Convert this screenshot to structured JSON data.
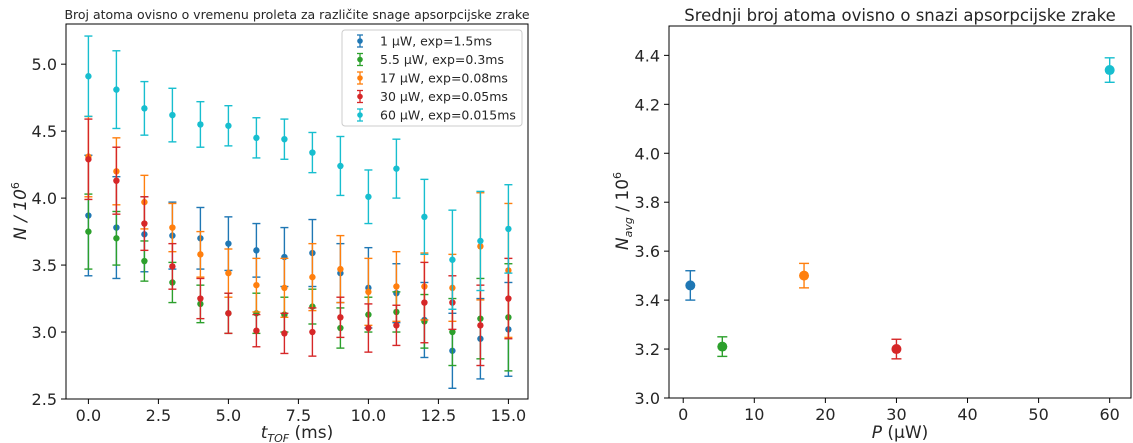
{
  "chart_data": [
    {
      "type": "scatter",
      "title": "Broj atoma ovisno o vremenu proleta za različite snage apsorpcijske zrake",
      "xlabel_main": "t",
      "xlabel_sub": "TOF",
      "xlabel_unit": " (ms)",
      "ylabel_main": "N / 10",
      "ylabel_sup": "6",
      "xlim": [
        -0.8,
        15.7
      ],
      "ylim": [
        2.5,
        5.3
      ],
      "xticks": [
        0.0,
        2.5,
        5.0,
        7.5,
        10.0,
        12.5,
        15.0
      ],
      "xtick_labels": [
        "0.0",
        "2.5",
        "5.0",
        "7.5",
        "10.0",
        "12.5",
        "15.0"
      ],
      "yticks": [
        2.5,
        3.0,
        3.5,
        4.0,
        4.5,
        5.0
      ],
      "ytick_labels": [
        "2.5",
        "3.0",
        "3.5",
        "4.0",
        "4.5",
        "5.0"
      ],
      "legend_position": "top-right",
      "x": [
        0,
        1,
        2,
        3,
        4,
        5,
        6,
        7,
        8,
        9,
        10,
        11,
        12,
        13,
        14,
        15
      ],
      "series": [
        {
          "name": "1 μW, exp=1.5ms",
          "color": "#1f77b4",
          "values": [
            3.87,
            3.78,
            3.73,
            3.72,
            3.7,
            3.66,
            3.61,
            3.56,
            3.59,
            3.44,
            3.33,
            3.29,
            3.09,
            2.86,
            2.95,
            3.02
          ],
          "errors": [
            0.45,
            0.38,
            0.28,
            0.25,
            0.23,
            0.2,
            0.2,
            0.22,
            0.25,
            0.22,
            0.3,
            0.22,
            0.28,
            0.28,
            0.3,
            0.35
          ]
        },
        {
          "name": "5.5 μW, exp=0.3ms",
          "color": "#2ca02c",
          "values": [
            3.75,
            3.7,
            3.53,
            3.37,
            3.21,
            3.14,
            3.14,
            3.13,
            3.19,
            3.03,
            3.13,
            3.15,
            3.08,
            3.0,
            3.1,
            3.11
          ],
          "errors": [
            0.28,
            0.2,
            0.15,
            0.15,
            0.14,
            0.15,
            0.15,
            0.13,
            0.13,
            0.15,
            0.13,
            0.15,
            0.2,
            0.25,
            0.3,
            0.4
          ]
        },
        {
          "name": "17 μW, exp=0.08ms",
          "color": "#ff7f0e",
          "values": [
            4.31,
            4.2,
            3.97,
            3.78,
            3.58,
            3.44,
            3.35,
            3.33,
            3.41,
            3.47,
            3.3,
            3.34,
            3.34,
            3.33,
            3.64,
            3.46
          ],
          "errors": [
            0.3,
            0.25,
            0.2,
            0.18,
            0.17,
            0.18,
            0.2,
            0.22,
            0.25,
            0.25,
            0.25,
            0.26,
            0.25,
            0.25,
            0.4,
            0.5
          ]
        },
        {
          "name": "30 μW, exp=0.05ms",
          "color": "#d62728",
          "values": [
            4.29,
            4.13,
            3.81,
            3.49,
            3.25,
            3.14,
            3.01,
            2.99,
            3.0,
            3.11,
            3.03,
            3.05,
            3.22,
            3.22,
            3.05,
            3.25
          ],
          "errors": [
            0.3,
            0.25,
            0.2,
            0.17,
            0.15,
            0.15,
            0.12,
            0.15,
            0.18,
            0.15,
            0.18,
            0.15,
            0.3,
            0.2,
            0.3,
            0.3
          ]
        },
        {
          "name": "60 μW, exp=0.015ms",
          "color": "#17becf",
          "values": [
            4.91,
            4.81,
            4.67,
            4.62,
            4.55,
            4.54,
            4.45,
            4.44,
            4.34,
            4.24,
            4.01,
            4.22,
            3.86,
            3.54,
            3.68,
            3.77
          ],
          "errors": [
            0.3,
            0.29,
            0.2,
            0.2,
            0.17,
            0.15,
            0.15,
            0.15,
            0.15,
            0.22,
            0.2,
            0.22,
            0.28,
            0.37,
            0.37,
            0.33
          ]
        }
      ]
    },
    {
      "type": "scatter",
      "title": "Srednji broj atoma ovisno o snazi apsorpcijske zrake",
      "xlabel_main": "P",
      "xlabel_unit": " (μW)",
      "ylabel_main": "N",
      "ylabel_sub": "avg",
      "ylabel_rest": " / 10",
      "ylabel_sup": "6",
      "xlim": [
        -2,
        63
      ],
      "ylim": [
        3.0,
        4.52
      ],
      "xticks": [
        0,
        10,
        20,
        30,
        40,
        50,
        60
      ],
      "xtick_labels": [
        "0",
        "10",
        "20",
        "30",
        "40",
        "50",
        "60"
      ],
      "yticks": [
        3.0,
        3.2,
        3.4,
        3.6,
        3.8,
        4.0,
        4.2,
        4.4
      ],
      "ytick_labels": [
        "3.0",
        "3.2",
        "3.4",
        "3.6",
        "3.8",
        "4.0",
        "4.2",
        "4.4"
      ],
      "points": [
        {
          "x": 1,
          "y": 3.46,
          "err": 0.06,
          "color": "#1f77b4"
        },
        {
          "x": 5.5,
          "y": 3.21,
          "err": 0.04,
          "color": "#2ca02c"
        },
        {
          "x": 17,
          "y": 3.5,
          "err": 0.05,
          "color": "#ff7f0e"
        },
        {
          "x": 30,
          "y": 3.2,
          "err": 0.04,
          "color": "#d62728"
        },
        {
          "x": 60,
          "y": 4.34,
          "err": 0.05,
          "color": "#17becf"
        }
      ]
    }
  ]
}
